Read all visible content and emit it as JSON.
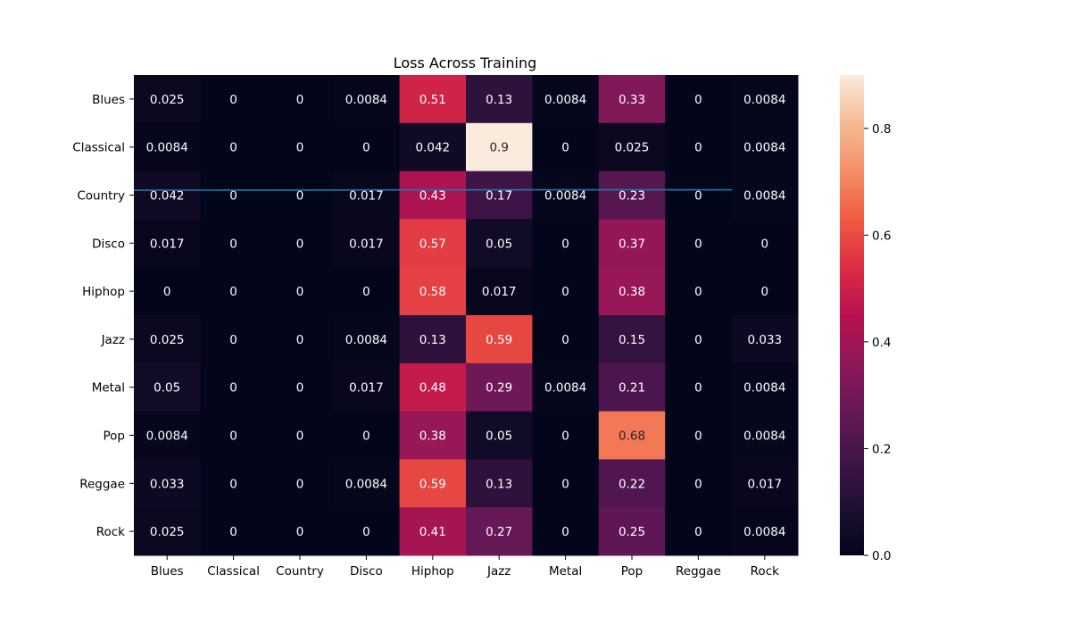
{
  "chart_data": {
    "type": "heatmap",
    "title": "Loss Across Training",
    "xlabel": "",
    "ylabel": "",
    "x_categories": [
      "Blues",
      "Classical",
      "Country",
      "Disco",
      "Hiphop",
      "Jazz",
      "Metal",
      "Pop",
      "Reggae",
      "Rock"
    ],
    "y_categories": [
      "Blues",
      "Classical",
      "Country",
      "Disco",
      "Hiphop",
      "Jazz",
      "Metal",
      "Pop",
      "Reggae",
      "Rock"
    ],
    "values": [
      [
        0.025,
        0,
        0,
        0.0084,
        0.51,
        0.13,
        0.0084,
        0.33,
        0,
        0.0084
      ],
      [
        0.0084,
        0,
        0,
        0,
        0.042,
        0.9,
        0,
        0.025,
        0,
        0.0084
      ],
      [
        0.042,
        0,
        0,
        0.017,
        0.43,
        0.17,
        0.0084,
        0.23,
        0,
        0.0084
      ],
      [
        0.017,
        0,
        0,
        0.017,
        0.57,
        0.05,
        0,
        0.37,
        0,
        0
      ],
      [
        0,
        0,
        0,
        0,
        0.58,
        0.017,
        0,
        0.38,
        0,
        0
      ],
      [
        0.025,
        0,
        0,
        0.0084,
        0.13,
        0.59,
        0,
        0.15,
        0,
        0.033
      ],
      [
        0.05,
        0,
        0,
        0.017,
        0.48,
        0.29,
        0.0084,
        0.21,
        0,
        0.0084
      ],
      [
        0.0084,
        0,
        0,
        0,
        0.38,
        0.05,
        0,
        0.68,
        0,
        0.0084
      ],
      [
        0.033,
        0,
        0,
        0.0084,
        0.59,
        0.13,
        0,
        0.22,
        0,
        0.017
      ],
      [
        0.025,
        0,
        0,
        0,
        0.41,
        0.27,
        0,
        0.25,
        0,
        0.0084
      ]
    ],
    "colorbar": {
      "range": [
        0,
        0.9
      ],
      "ticks": [
        0.0,
        0.2,
        0.4,
        0.6,
        0.8
      ],
      "tick_labels": [
        "0.0",
        "0.2",
        "0.4",
        "0.6",
        "0.8"
      ],
      "colormap": "rocket"
    },
    "overlay_line": {
      "series": "loss",
      "values": [
        0.0,
        0.01,
        0.02,
        0.03,
        0.035,
        0.038,
        0.04,
        0.041,
        0.041,
        0.041
      ],
      "color": "#1f77b4"
    },
    "annotation_colors": {
      "dark": "#262626",
      "light": "#ffffff"
    }
  }
}
